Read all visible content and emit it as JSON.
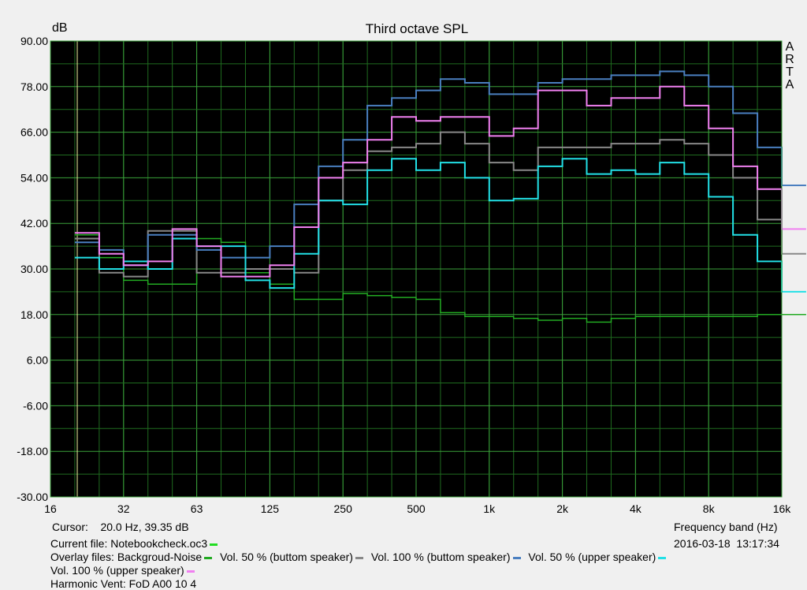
{
  "chart_data": {
    "type": "line",
    "title": "Third octave SPL",
    "ylabel": "dB",
    "xlabel": "Frequency band (Hz)",
    "side_label": [
      "A",
      "R",
      "T",
      "A"
    ],
    "ylim": [
      -30,
      90
    ],
    "y_ticks": [
      "90.00",
      "78.00",
      "66.00",
      "54.00",
      "42.00",
      "30.00",
      "18.00",
      "6.00",
      "-6.00",
      "-18.00",
      "-30.00"
    ],
    "x_ticks": [
      "16",
      "32",
      "63",
      "125",
      "250",
      "500",
      "1k",
      "2k",
      "4k",
      "8k",
      "16k"
    ],
    "x_bands": [
      "20",
      "25",
      "31.5",
      "40",
      "50",
      "63",
      "80",
      "100",
      "125",
      "160",
      "200",
      "250",
      "315",
      "400",
      "500",
      "630",
      "800",
      "1k",
      "1.25k",
      "1.6k",
      "2k",
      "2.5k",
      "3.15k",
      "4k",
      "5k",
      "6.3k",
      "8k",
      "10k",
      "12.5k",
      "16k"
    ],
    "grid": true,
    "cursor_band": "20",
    "series": [
      {
        "name": "Backgroud-Noise",
        "color": "#22aa22",
        "values": [
          39,
          33,
          27,
          26,
          26,
          38,
          37,
          29,
          26,
          22,
          22,
          23.5,
          23,
          22.5,
          22,
          18.5,
          17.5,
          17.5,
          17,
          16.5,
          17,
          16,
          17,
          17.5,
          17.5,
          17.5,
          17.5,
          17.5,
          18,
          18
        ]
      },
      {
        "name": "Vol. 50 % (buttom speaker)",
        "color": "#888888",
        "values": [
          38,
          29,
          28,
          40,
          40,
          29,
          29,
          30,
          30,
          29,
          48,
          56,
          61,
          62,
          63,
          66,
          63,
          58,
          56,
          62,
          62,
          62,
          63,
          63,
          64,
          63,
          60,
          54,
          43,
          34
        ]
      },
      {
        "name": "Vol. 100 % (buttom speaker)",
        "color": "#4a7fc0",
        "values": [
          37,
          35,
          31,
          39,
          39,
          35,
          33,
          33,
          36,
          47,
          57,
          64,
          73,
          75,
          77,
          80,
          79,
          76,
          76,
          79,
          80,
          80,
          81,
          81,
          82,
          81,
          78,
          71,
          62,
          52
        ]
      },
      {
        "name": "Vol. 50 % (upper speaker)",
        "color": "#22e0e6",
        "values": [
          33,
          30,
          32,
          30,
          38,
          36,
          36,
          27,
          25,
          34,
          48,
          47,
          56,
          59,
          56,
          58,
          54,
          48,
          48.5,
          57,
          59,
          55,
          56,
          55,
          58,
          55,
          49,
          39,
          32,
          24
        ]
      },
      {
        "name": "Vol. 100 % (upper speaker)",
        "color": "#f080f0",
        "values": [
          39.5,
          34,
          31,
          32,
          40.5,
          36,
          28,
          28,
          31,
          41,
          54,
          58,
          64,
          70,
          69,
          70,
          70,
          65,
          67,
          77,
          77,
          73,
          75,
          75,
          78,
          73,
          67,
          57,
          51,
          40.5
        ]
      }
    ]
  },
  "footer": {
    "cursor_label": "Cursor:",
    "cursor_value": "20.0 Hz, 39.35 dB",
    "freq_band_label": "Frequency band (Hz)",
    "current_file_label": "Current file:",
    "current_file": "Notebookcheck.oc3",
    "current_file_color": "#22dd22",
    "date": "2016-03-18",
    "time": "13:17:34",
    "overlay_label": "Overlay files:",
    "cut_text": "Harmonic Vent: FoD A00 10 4"
  }
}
